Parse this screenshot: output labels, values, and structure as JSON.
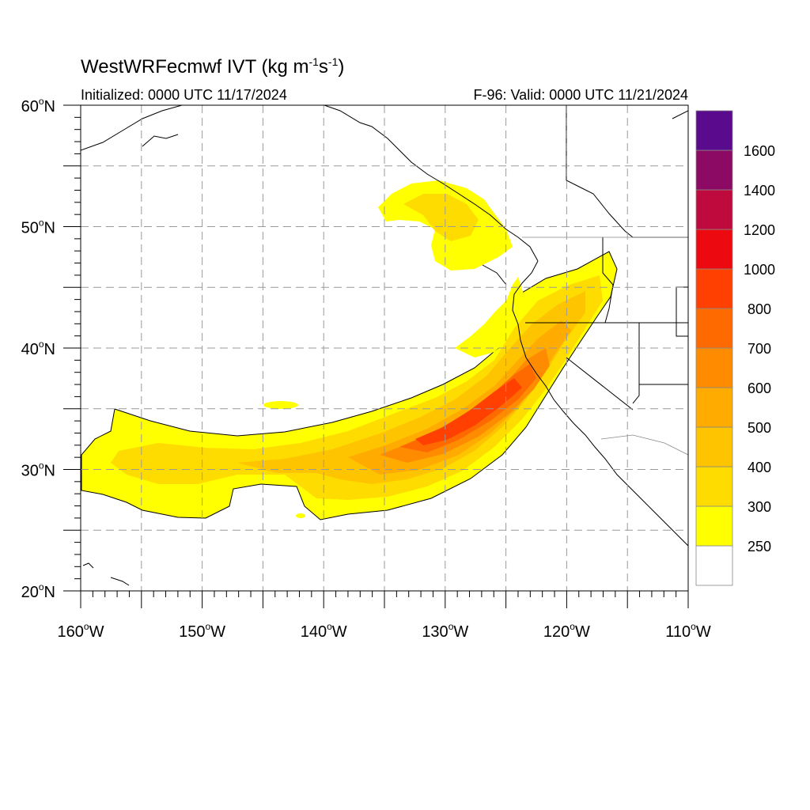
{
  "header": {
    "title_main": "WestWRFecmwf IVT (kg m",
    "title_sup1": "-1",
    "title_mid": "s",
    "title_sup2": "-1",
    "title_end": ")",
    "init_text": "Initialized: 0000 UTC 11/17/2024",
    "valid_text": "F-96: Valid: 0000 UTC 11/21/2024"
  },
  "map": {
    "lon_range": [
      -160,
      -110
    ],
    "lat_range": [
      20,
      60
    ],
    "lon_ticks": [
      {
        "value": -160,
        "label": "160"
      },
      {
        "value": -150,
        "label": "150"
      },
      {
        "value": -140,
        "label": "140"
      },
      {
        "value": -130,
        "label": "130"
      },
      {
        "value": -120,
        "label": "120"
      },
      {
        "value": -110,
        "label": "110"
      }
    ],
    "lat_ticks": [
      {
        "value": 60,
        "label": "60"
      },
      {
        "value": 50,
        "label": "50"
      },
      {
        "value": 40,
        "label": "40"
      },
      {
        "value": 30,
        "label": "30"
      },
      {
        "value": 20,
        "label": "20"
      }
    ],
    "lon_suffix": "W",
    "lat_suffix": "N",
    "degree_symbol": "o",
    "grid": "dashed every 5 degrees"
  },
  "colorbar": {
    "levels": [
      "250",
      "300",
      "400",
      "500",
      "600",
      "700",
      "800",
      "1000",
      "1200",
      "1400",
      "1600"
    ],
    "colors": [
      "#ffffff",
      "#ffff00",
      "#ffdc00",
      "#ffc400",
      "#ffab00",
      "#ff8c00",
      "#ff6a00",
      "#ff4000",
      "#ec0a10",
      "#be0a3c",
      "#8c0a64",
      "#5a0a8c"
    ]
  }
}
